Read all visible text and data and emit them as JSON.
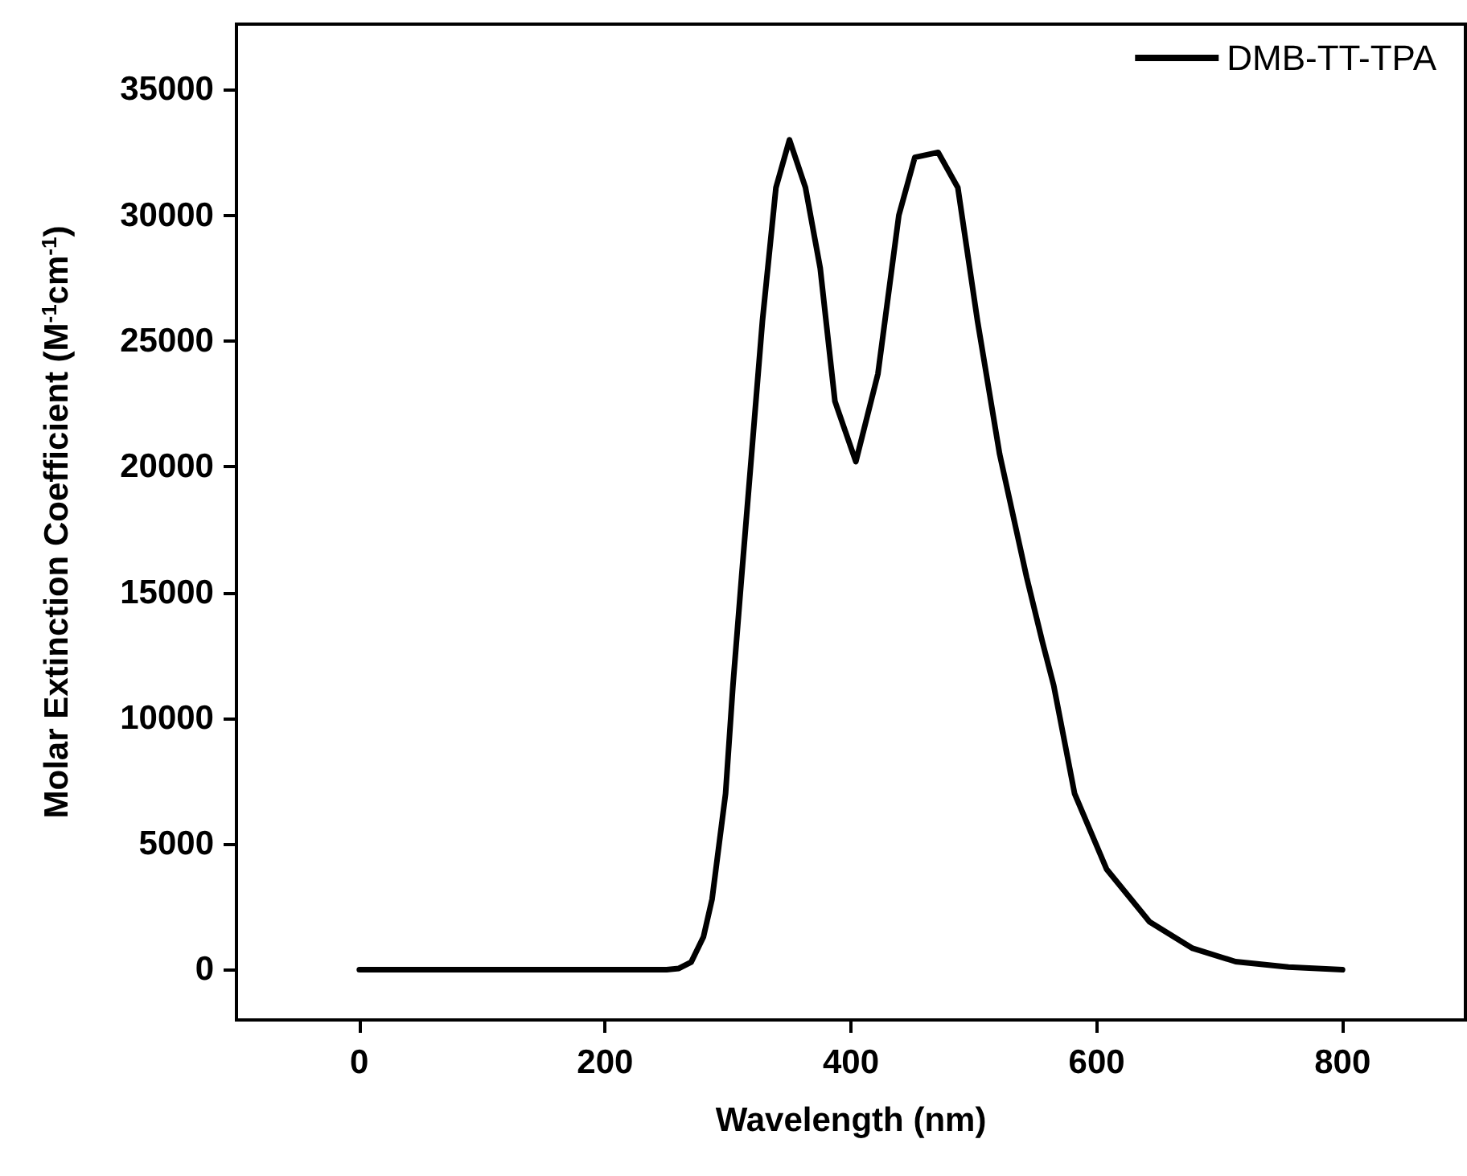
{
  "chart_data": {
    "type": "line",
    "xlabel": "Wavelength (nm)",
    "ylabel": "Molar Extinction Coefficient (M$^{-1}$cm$^{-1}$)",
    "xlim": [
      -100,
      900
    ],
    "xticks": [
      0,
      200,
      400,
      600,
      800
    ],
    "ylim": [
      -2000,
      37600
    ],
    "yticks": [
      0,
      5000,
      10000,
      15000,
      20000,
      25000,
      30000,
      35000
    ],
    "grid": false,
    "legend": "top right",
    "marker": "none",
    "line_style": "solid",
    "series": [
      {
        "name": "DMB-TT-TPA",
        "color": "#000000",
        "x": [
          0,
          100,
          200,
          250,
          260,
          270,
          280,
          287,
          298,
          304,
          311,
          320,
          328,
          339,
          350,
          363,
          375,
          387,
          404,
          422,
          439,
          452,
          471,
          487,
          503,
          521,
          543,
          556,
          565,
          582,
          608,
          643,
          678,
          713,
          756,
          800
        ],
        "values": [
          0,
          0,
          0,
          0,
          50,
          300,
          1300,
          2800,
          7000,
          11300,
          15600,
          21000,
          25800,
          31100,
          33000,
          31100,
          27900,
          22600,
          20200,
          23700,
          30000,
          32300,
          32500,
          31100,
          25800,
          20500,
          15600,
          13000,
          11300,
          7000,
          4000,
          1900,
          850,
          320,
          100,
          0
        ]
      }
    ]
  }
}
